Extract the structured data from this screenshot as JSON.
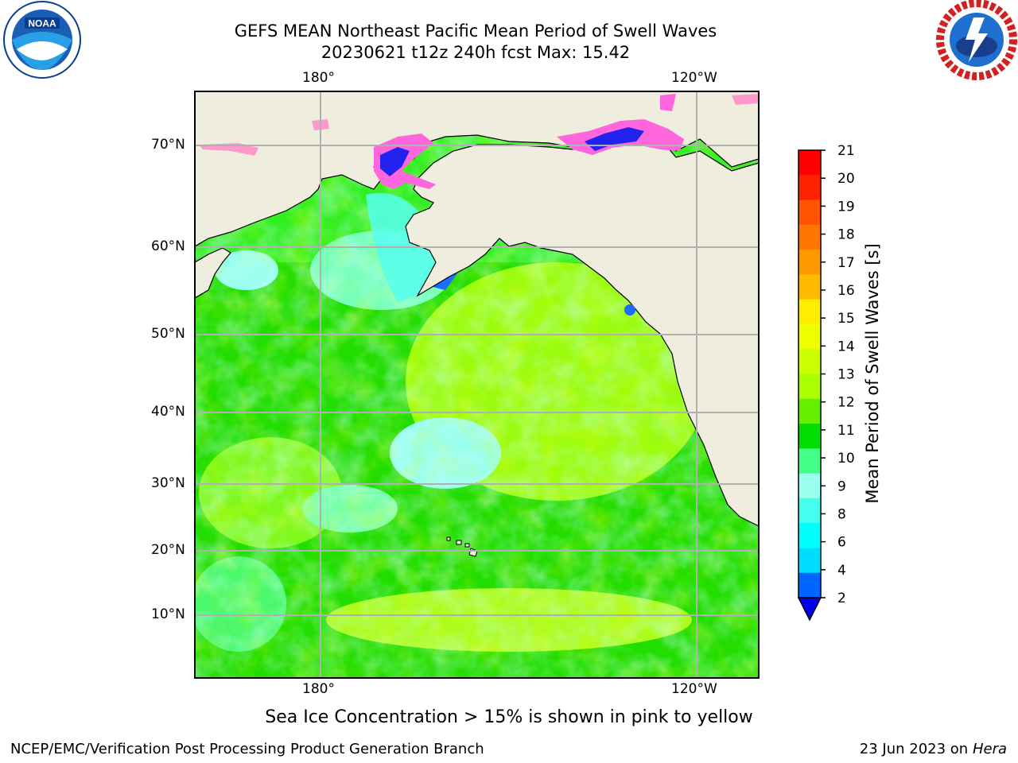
{
  "title_line1": "GEFS MEAN Northeast Pacific Mean Period of Swell Waves",
  "title_line2": "20230621 t12z 240h fcst   Max: 15.42",
  "caption": "Sea Ice Concentration > 15% is shown in pink to yellow",
  "footer_left": "NCEP/EMC/Verification Post Processing Product Generation Branch",
  "footer_date": "23 Jun 2023 on",
  "footer_machine": "Hera",
  "logos": {
    "left": "noaa-logo",
    "right": "nws-logo"
  },
  "map": {
    "lon_ticks_top": [
      "180°",
      "120°W"
    ],
    "lon_ticks_bottom": [
      "180°",
      "120°W"
    ],
    "lat_ticks": [
      "70°N",
      "60°N",
      "50°N",
      "40°N",
      "30°N",
      "20°N",
      "10°N"
    ],
    "land_color": "#eeedde",
    "grid_color": "#b0b0b0"
  },
  "colorbar": {
    "label": "Mean Period of Swell Waves [s]",
    "tick_labels": [
      "21",
      "20",
      "19",
      "18",
      "17",
      "16",
      "15",
      "14",
      "13",
      "12",
      "11",
      "10",
      "9",
      "8",
      "6",
      "4",
      "2"
    ],
    "colors_top_to_bottom": [
      "#ff0000",
      "#ff2200",
      "#ff5500",
      "#ff7700",
      "#ff9900",
      "#ffbb00",
      "#ffee00",
      "#eeff00",
      "#ccff00",
      "#aaff00",
      "#66ee00",
      "#00dd00",
      "#44ff88",
      "#99ffee",
      "#44ffee",
      "#00ffff",
      "#00ddff",
      "#0066ff"
    ],
    "extend_color": "#0000ee"
  }
}
